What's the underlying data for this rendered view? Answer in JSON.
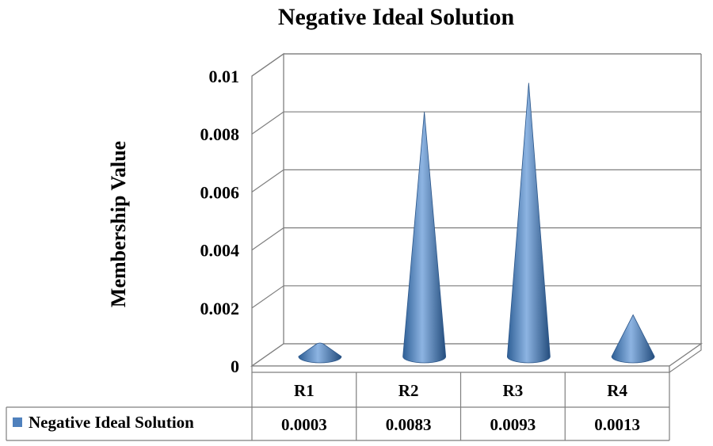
{
  "chart_data": {
    "type": "bar",
    "bar_shape": "cone",
    "three_d": true,
    "title": "Negative Ideal Solution",
    "xlabel": "",
    "ylabel": "Membership Value",
    "ylim": [
      0,
      0.01
    ],
    "yticks": [
      "0",
      "0.002",
      "0.004",
      "0.006",
      "0.008",
      "0.01"
    ],
    "categories": [
      "R1",
      "R2",
      "R3",
      "R4"
    ],
    "series": [
      {
        "name": "Negative Ideal Solution",
        "values": [
          0.0003,
          0.0083,
          0.0093,
          0.0013
        ],
        "value_labels": [
          "0.0003",
          "0.0083",
          "0.0093",
          "0.0013"
        ],
        "color": "#4f81bd"
      }
    ],
    "grid": true,
    "legend": "data-table-left"
  }
}
